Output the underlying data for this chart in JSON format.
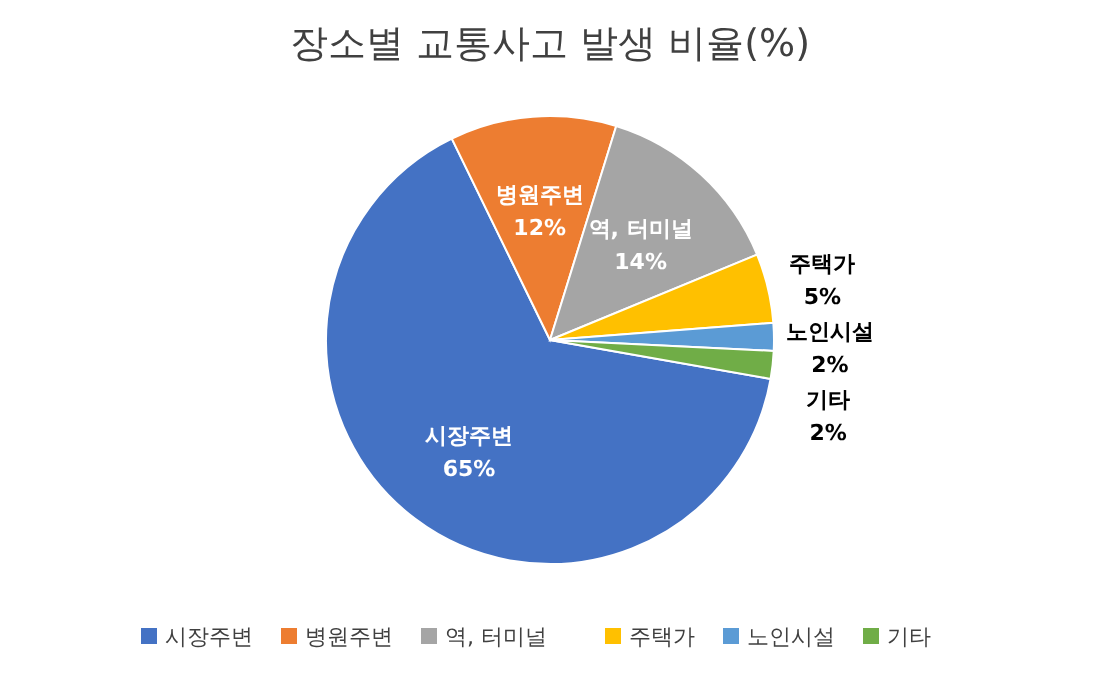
{
  "chart_data": {
    "type": "pie",
    "title": "장소별 교통사고 발생 비율(%)",
    "categories": [
      "시장주변",
      "병원주변",
      "역, 터미널",
      "주택가",
      "노인시설",
      "기타"
    ],
    "values": [
      65,
      12,
      14,
      5,
      2,
      2
    ],
    "colors": [
      "#4472c4",
      "#ed7d31",
      "#a5a5a5",
      "#ffc000",
      "#5b9bd5",
      "#70ad47"
    ],
    "value_labels": [
      "65%",
      "12%",
      "14%",
      "5%",
      "2%",
      "2%"
    ],
    "legend": "bottom"
  }
}
